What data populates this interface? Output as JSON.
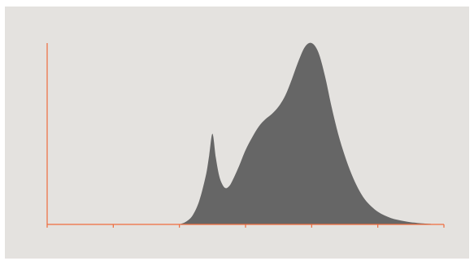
{
  "chart_data": {
    "type": "area",
    "title": "",
    "xlabel": "",
    "ylabel": "",
    "xlim": [
      0,
      6
    ],
    "ylim": [
      0,
      1
    ],
    "x_ticks": [
      0,
      1,
      2,
      3,
      4,
      5,
      6
    ],
    "grid": false,
    "legend": "none",
    "series": [
      {
        "x": [
          2.0,
          2.1,
          2.2,
          2.3,
          2.4,
          2.45,
          2.5,
          2.55,
          2.6,
          2.65,
          2.7,
          2.75,
          2.8,
          2.9,
          3.0,
          3.1,
          3.2,
          3.3,
          3.4,
          3.5,
          3.6,
          3.7,
          3.8,
          3.9,
          4.0,
          4.1,
          4.2,
          4.3,
          4.4,
          4.5,
          4.6,
          4.7,
          4.8,
          4.9,
          5.0,
          5.1,
          5.2,
          5.3,
          5.4,
          5.5,
          5.6,
          5.7,
          5.8
        ],
        "values": [
          0.0,
          0.015,
          0.05,
          0.13,
          0.27,
          0.38,
          0.5,
          0.37,
          0.27,
          0.22,
          0.2,
          0.21,
          0.24,
          0.32,
          0.41,
          0.48,
          0.54,
          0.58,
          0.61,
          0.65,
          0.71,
          0.8,
          0.9,
          0.98,
          1.0,
          0.95,
          0.82,
          0.65,
          0.5,
          0.38,
          0.28,
          0.2,
          0.14,
          0.1,
          0.07,
          0.05,
          0.035,
          0.025,
          0.018,
          0.012,
          0.008,
          0.005,
          0.003
        ]
      }
    ],
    "colors": {
      "fill": "#666666",
      "axis": "#ef6c3d",
      "background": "#e4e2df"
    }
  }
}
